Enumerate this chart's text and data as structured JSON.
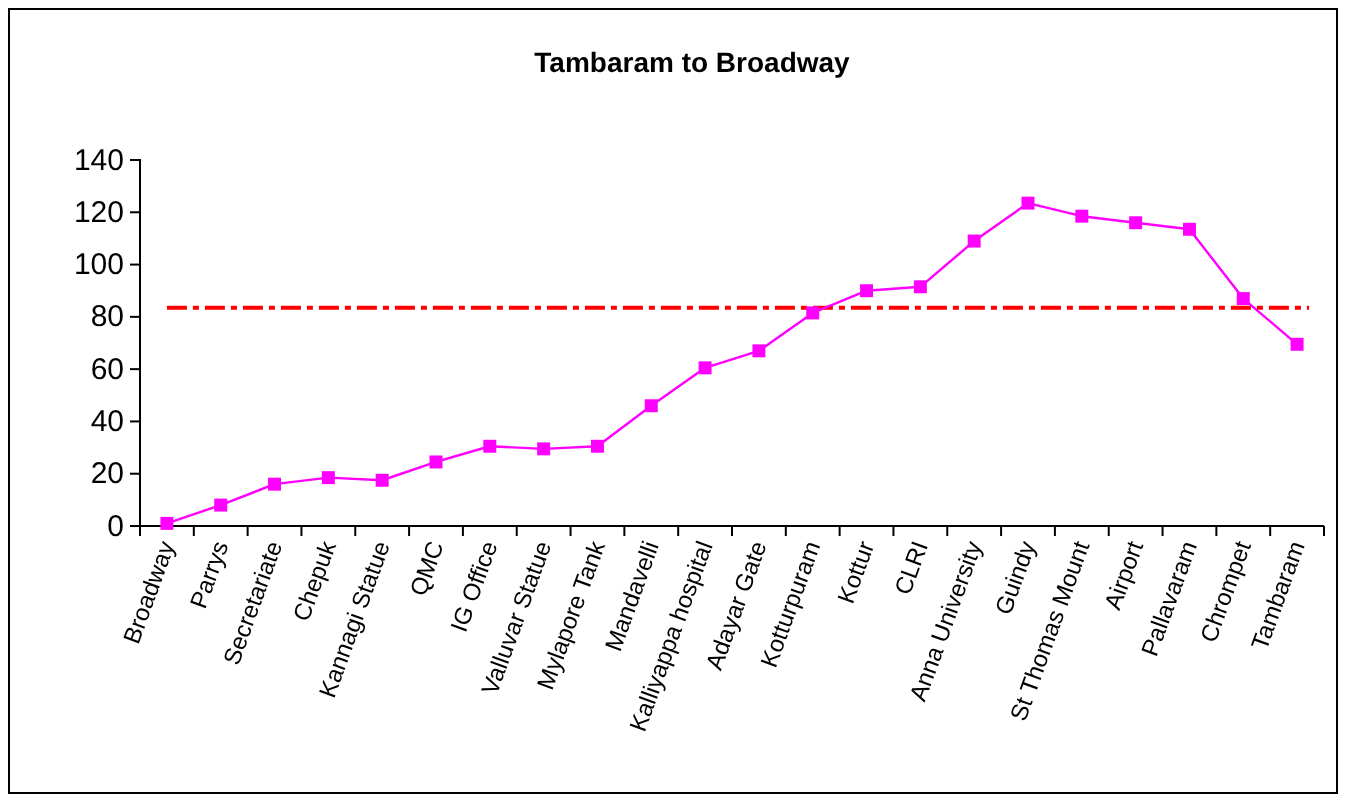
{
  "chart_data": {
    "type": "line",
    "title": "Tambaram to Broadway",
    "categories": [
      "Broadway",
      "Parrys",
      "Secretariate",
      "Chepuk",
      "Kannagi Statue",
      "QMC",
      "IG Office",
      "Valluvar Statue",
      "Mylapore Tank",
      "Mandavelli",
      "Kalliyappa hospital",
      "Adayar Gate",
      "Kotturpuram",
      "Kottur",
      "CLRI",
      "Anna University",
      "Guindy",
      "St Thomas Mount",
      "Airport",
      "Pallavaram",
      "Chrompet",
      "Tambaram"
    ],
    "series": [
      {
        "color": "#ff00ff",
        "values": [
          1,
          8,
          16,
          18.5,
          17.5,
          24.5,
          30.5,
          29.5,
          30.5,
          46,
          60.5,
          67,
          81.5,
          90,
          91.5,
          109,
          123.5,
          118.5,
          116,
          113.5,
          87,
          69.5
        ]
      }
    ],
    "ylim": [
      0,
      140
    ],
    "yticks": [
      0,
      20,
      40,
      60,
      80,
      100,
      120,
      140
    ],
    "marker": "square",
    "grid": false,
    "ref_lines": [
      {
        "axis": "y",
        "value": 83.5,
        "color": "#ff0000",
        "line_style": "dashed"
      }
    ]
  }
}
